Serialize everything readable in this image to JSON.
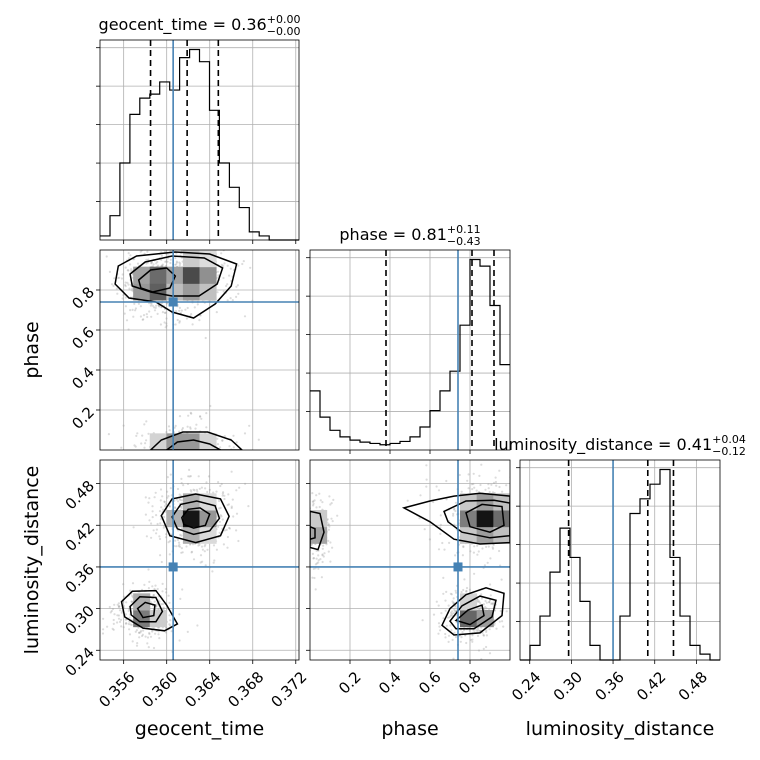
{
  "chart_data": {
    "type": "corner",
    "parameters": [
      {
        "name": "geocent_time",
        "axis_label": "geocent_time",
        "range": [
          0.3538,
          0.3723
        ],
        "ticks": [
          0.356,
          0.36,
          0.364,
          0.368,
          0.372
        ],
        "tick_labels": [
          "0.356",
          "0.360",
          "0.364",
          "0.368",
          "0.372"
        ],
        "truth": 0.3606,
        "quantiles": [
          0.3585,
          0.3619,
          0.3648
        ],
        "title": {
          "prefix": "geocent_time = ",
          "value": "0.36",
          "upper": "+0.00",
          "lower": "−0.00"
        },
        "histogram": {
          "edges": [
            0.3538,
            0.35473,
            0.35565,
            0.35658,
            0.3575,
            0.35843,
            0.35935,
            0.36028,
            0.3612,
            0.36213,
            0.36305,
            0.36398,
            0.3649,
            0.36583,
            0.36675,
            0.36768,
            0.3686,
            0.36953,
            0.37045,
            0.37138,
            0.3723
          ],
          "counts": [
            1,
            6,
            19,
            31,
            35,
            36,
            39,
            37,
            45,
            47,
            44,
            32,
            19,
            13,
            8,
            2,
            1,
            0,
            0,
            0
          ]
        }
      },
      {
        "name": "phase",
        "axis_label": "phase",
        "range": [
          0.0,
          1.0
        ],
        "ticks": [
          0.2,
          0.4,
          0.6,
          0.8
        ],
        "tick_labels": [
          "0.2",
          "0.4",
          "0.6",
          "0.8"
        ],
        "truth": 0.74,
        "quantiles": [
          0.38,
          0.81,
          0.92
        ],
        "title": {
          "prefix": "phase = ",
          "value": "0.81",
          "upper": "+0.11",
          "lower": "−0.43"
        },
        "histogram": {
          "edges": [
            0.0,
            0.05,
            0.1,
            0.15,
            0.2,
            0.25,
            0.3,
            0.35,
            0.4,
            0.45,
            0.5,
            0.55,
            0.6,
            0.65,
            0.7,
            0.75,
            0.8,
            0.85,
            0.9,
            0.95,
            1.0
          ],
          "counts": [
            9,
            5,
            3,
            2,
            1.5,
            1.2,
            1,
            0.8,
            1,
            1.3,
            2,
            3.5,
            6,
            9,
            12,
            19,
            29,
            28,
            22,
            13
          ]
        }
      },
      {
        "name": "luminosity_distance",
        "axis_label": "luminosity_distance",
        "range": [
          0.226,
          0.514
        ],
        "ticks": [
          0.24,
          0.3,
          0.36,
          0.42,
          0.48
        ],
        "tick_labels": [
          "0.24",
          "0.30",
          "0.36",
          "0.42",
          "0.48"
        ],
        "truth": 0.36,
        "quantiles": [
          0.296,
          0.41,
          0.447
        ],
        "title": {
          "prefix": "luminosity_distance = ",
          "value": "0.41",
          "upper": "+0.04",
          "lower": "−0.12"
        },
        "histogram": {
          "edges": [
            0.226,
            0.2404,
            0.2548,
            0.2692,
            0.2836,
            0.298,
            0.3124,
            0.3268,
            0.3412,
            0.3556,
            0.37,
            0.3844,
            0.3988,
            0.4132,
            0.4276,
            0.442,
            0.4564,
            0.4708,
            0.4852,
            0.4996,
            0.514
          ],
          "counts": [
            0,
            1,
            3,
            6,
            9,
            7,
            4,
            1,
            0,
            0,
            3,
            10,
            11,
            12,
            13,
            7,
            3,
            1,
            0.4,
            0
          ]
        }
      }
    ],
    "pairs": [
      {
        "x": "geocent_time",
        "y": "phase",
        "density_peaks": [
          {
            "x": 0.3587,
            "y": 0.83,
            "sx": 0.001,
            "sy": 0.05,
            "w": 1.0
          },
          {
            "x": 0.3625,
            "y": 0.86,
            "sx": 0.0013,
            "sy": 0.06,
            "w": 0.8
          },
          {
            "x": 0.3615,
            "y": 0.03,
            "sx": 0.0016,
            "sy": 0.04,
            "w": 0.5
          }
        ],
        "contours": [
          [
            [
              0.3555,
              0.92
            ],
            [
              0.3572,
              0.97
            ],
            [
              0.3608,
              0.99
            ],
            [
              0.364,
              0.98
            ],
            [
              0.3665,
              0.93
            ],
            [
              0.366,
              0.82
            ],
            [
              0.3645,
              0.73
            ],
            [
              0.3625,
              0.66
            ],
            [
              0.3605,
              0.69
            ],
            [
              0.359,
              0.74
            ],
            [
              0.3565,
              0.76
            ],
            [
              0.3552,
              0.83
            ]
          ],
          [
            [
              0.3566,
              0.88
            ],
            [
              0.358,
              0.94
            ],
            [
              0.3605,
              0.97
            ],
            [
              0.3635,
              0.96
            ],
            [
              0.3652,
              0.91
            ],
            [
              0.3647,
              0.83
            ],
            [
              0.363,
              0.77
            ],
            [
              0.3605,
              0.77
            ],
            [
              0.3585,
              0.79
            ],
            [
              0.3568,
              0.82
            ]
          ],
          [
            [
              0.3574,
              0.85
            ],
            [
              0.3585,
              0.9
            ],
            [
              0.36,
              0.91
            ],
            [
              0.3608,
              0.87
            ],
            [
              0.3603,
              0.81
            ],
            [
              0.3587,
              0.79
            ],
            [
              0.3576,
              0.81
            ]
          ],
          [
            [
              0.3585,
              0.0
            ],
            [
              0.3595,
              0.05
            ],
            [
              0.3615,
              0.09
            ],
            [
              0.3638,
              0.09
            ],
            [
              0.366,
              0.05
            ],
            [
              0.367,
              0.0
            ]
          ],
          [
            [
              0.36,
              0.0
            ],
            [
              0.361,
              0.04
            ],
            [
              0.3625,
              0.05
            ],
            [
              0.364,
              0.03
            ],
            [
              0.365,
              0.0
            ]
          ]
        ],
        "truth": [
          0.3606,
          0.74
        ]
      },
      {
        "x": "geocent_time",
        "y": "luminosity_distance",
        "density_peaks": [
          {
            "x": 0.3624,
            "y": 0.43,
            "sx": 0.0011,
            "sy": 0.016,
            "w": 1.0
          },
          {
            "x": 0.358,
            "y": 0.295,
            "sx": 0.0008,
            "sy": 0.012,
            "w": 0.8
          }
        ],
        "contours": [
          [
            [
              0.3595,
              0.434
            ],
            [
              0.3605,
              0.458
            ],
            [
              0.3627,
              0.465
            ],
            [
              0.365,
              0.458
            ],
            [
              0.3658,
              0.433
            ],
            [
              0.365,
              0.405
            ],
            [
              0.3627,
              0.395
            ],
            [
              0.3603,
              0.405
            ]
          ],
          [
            [
              0.3605,
              0.432
            ],
            [
              0.3613,
              0.45
            ],
            [
              0.3628,
              0.455
            ],
            [
              0.3645,
              0.448
            ],
            [
              0.3649,
              0.43
            ],
            [
              0.364,
              0.412
            ],
            [
              0.3625,
              0.407
            ],
            [
              0.361,
              0.415
            ]
          ],
          [
            [
              0.3614,
              0.431
            ],
            [
              0.362,
              0.443
            ],
            [
              0.3631,
              0.445
            ],
            [
              0.364,
              0.436
            ],
            [
              0.3636,
              0.42
            ],
            [
              0.3625,
              0.416
            ],
            [
              0.3616,
              0.421
            ]
          ],
          [
            [
              0.3558,
              0.31
            ],
            [
              0.3568,
              0.325
            ],
            [
              0.359,
              0.326
            ],
            [
              0.36,
              0.305
            ],
            [
              0.361,
              0.278
            ],
            [
              0.3598,
              0.268
            ],
            [
              0.3578,
              0.272
            ],
            [
              0.3561,
              0.288
            ]
          ],
          [
            [
              0.3566,
              0.303
            ],
            [
              0.3575,
              0.317
            ],
            [
              0.359,
              0.316
            ],
            [
              0.3596,
              0.296
            ],
            [
              0.359,
              0.281
            ],
            [
              0.3575,
              0.281
            ],
            [
              0.3567,
              0.291
            ]
          ],
          [
            [
              0.3573,
              0.3
            ],
            [
              0.358,
              0.309
            ],
            [
              0.3589,
              0.305
            ],
            [
              0.3588,
              0.29
            ],
            [
              0.3578,
              0.287
            ]
          ]
        ],
        "truth": [
          0.3606,
          0.36
        ]
      },
      {
        "x": "phase",
        "y": "luminosity_distance",
        "density_peaks": [
          {
            "x": 0.88,
            "y": 0.43,
            "sx": 0.08,
            "sy": 0.018,
            "w": 1.0
          },
          {
            "x": 0.02,
            "y": 0.41,
            "sx": 0.03,
            "sy": 0.018,
            "w": 0.5
          },
          {
            "x": 0.82,
            "y": 0.29,
            "sx": 0.05,
            "sy": 0.012,
            "w": 0.8
          }
        ],
        "contours": [
          [
            [
              0.47,
              0.445
            ],
            [
              0.6,
              0.455
            ],
            [
              0.72,
              0.462
            ],
            [
              0.85,
              0.466
            ],
            [
              1.0,
              0.462
            ],
            [
              1.0,
              0.395
            ],
            [
              0.85,
              0.393
            ],
            [
              0.72,
              0.4
            ],
            [
              0.6,
              0.425
            ]
          ],
          [
            [
              0.67,
              0.44
            ],
            [
              0.78,
              0.455
            ],
            [
              0.92,
              0.456
            ],
            [
              1.0,
              0.452
            ],
            [
              1.0,
              0.405
            ],
            [
              0.9,
              0.402
            ],
            [
              0.76,
              0.41
            ],
            [
              0.69,
              0.425
            ]
          ],
          [
            [
              0.78,
              0.438
            ],
            [
              0.86,
              0.45
            ],
            [
              0.96,
              0.447
            ],
            [
              0.97,
              0.42
            ],
            [
              0.9,
              0.41
            ],
            [
              0.8,
              0.418
            ]
          ],
          [
            [
              0.0,
              0.44
            ],
            [
              0.05,
              0.437
            ],
            [
              0.07,
              0.41
            ],
            [
              0.04,
              0.385
            ],
            [
              0.0,
              0.388
            ]
          ],
          [
            [
              0.0,
              0.418
            ],
            [
              0.025,
              0.415
            ],
            [
              0.025,
              0.402
            ],
            [
              0.0,
              0.4
            ]
          ],
          [
            [
              0.66,
              0.276
            ],
            [
              0.7,
              0.3
            ],
            [
              0.78,
              0.32
            ],
            [
              0.88,
              0.33
            ],
            [
              0.97,
              0.322
            ],
            [
              0.96,
              0.29
            ],
            [
              0.85,
              0.265
            ],
            [
              0.72,
              0.262
            ]
          ],
          [
            [
              0.7,
              0.282
            ],
            [
              0.76,
              0.304
            ],
            [
              0.85,
              0.318
            ],
            [
              0.93,
              0.312
            ],
            [
              0.91,
              0.288
            ],
            [
              0.82,
              0.271
            ],
            [
              0.73,
              0.271
            ]
          ],
          [
            [
              0.73,
              0.283
            ],
            [
              0.79,
              0.298
            ],
            [
              0.86,
              0.305
            ],
            [
              0.87,
              0.29
            ],
            [
              0.8,
              0.277
            ]
          ]
        ],
        "truth": [
          0.74,
          0.36
        ]
      }
    ]
  }
}
